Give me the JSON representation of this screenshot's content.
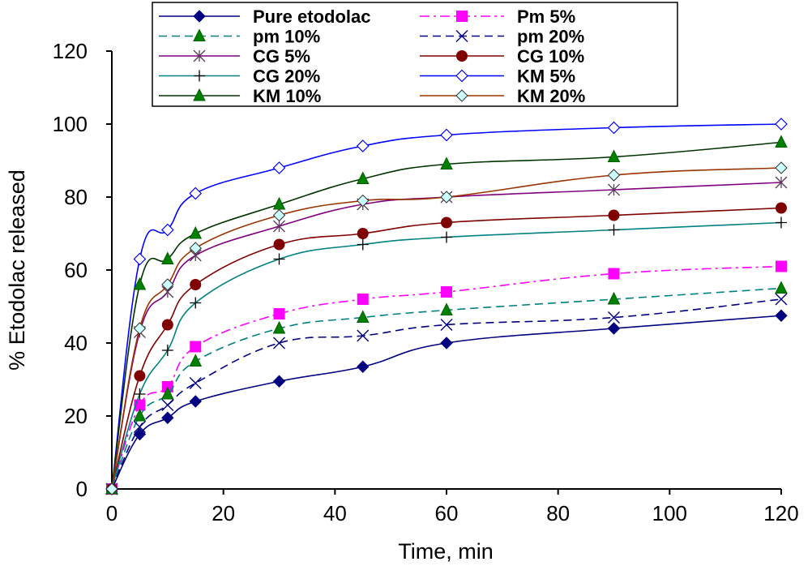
{
  "chart_data": {
    "type": "line",
    "title": "",
    "xlabel": "Time, min",
    "ylabel": "% Etodolac released",
    "xlim": [
      0,
      120
    ],
    "ylim": [
      0,
      120
    ],
    "x_ticks": [
      "0",
      "20",
      "40",
      "60",
      "80",
      "100",
      "120"
    ],
    "y_ticks": [
      "0",
      "20",
      "40",
      "60",
      "80",
      "100",
      "120"
    ],
    "grid": false,
    "legend_position": "top",
    "x": [
      0,
      5,
      10,
      15,
      30,
      45,
      60,
      90,
      120
    ],
    "series": [
      {
        "name": "Pure etodolac",
        "color": "#000080",
        "dash": "solid",
        "marker": "diamond-filled",
        "values": [
          0,
          15,
          19.5,
          24,
          29.5,
          33.5,
          40,
          44,
          47.5
        ]
      },
      {
        "name": "Pm 5%",
        "color": "#ff00ff",
        "dash": "dashdot",
        "marker": "square-filled",
        "values": [
          0,
          23,
          28,
          39,
          48,
          52,
          54,
          59,
          61
        ]
      },
      {
        "name": "pm 10%",
        "color": "#008080",
        "dash": "dashed",
        "marker": "triangle-green",
        "values": [
          0,
          20,
          26,
          35,
          44,
          47,
          49,
          52,
          55
        ]
      },
      {
        "name": "pm 20%",
        "color": "#000080",
        "dash": "dashed",
        "marker": "x",
        "values": [
          0,
          17,
          23,
          29,
          40,
          42,
          45,
          47,
          52
        ]
      },
      {
        "name": "CG 5%",
        "color": "#800080",
        "dash": "solid",
        "marker": "star",
        "values": [
          0,
          43,
          54,
          64,
          72,
          78,
          80,
          82,
          84
        ]
      },
      {
        "name": "CG 10%",
        "color": "#800000",
        "dash": "solid",
        "marker": "circle-filled",
        "values": [
          0,
          31,
          45,
          56,
          67,
          70,
          73,
          75,
          77
        ]
      },
      {
        "name": "CG 20%",
        "color": "#008080",
        "dash": "solid",
        "marker": "plus",
        "values": [
          0,
          26,
          38,
          51,
          63,
          67,
          69,
          71,
          73
        ]
      },
      {
        "name": "KM 5%",
        "color": "#0000ff",
        "dash": "solid",
        "marker": "diamond-open",
        "values": [
          0,
          63,
          71,
          81,
          88,
          94,
          97,
          99,
          100
        ]
      },
      {
        "name": "KM 10%",
        "color": "#003300",
        "dash": "solid",
        "marker": "triangle-green",
        "values": [
          0,
          56,
          63,
          70,
          78,
          85,
          89,
          91,
          95
        ]
      },
      {
        "name": "KM 20%",
        "color": "#993300",
        "dash": "solid",
        "marker": "diamond-light",
        "values": [
          0,
          44,
          56,
          66,
          75,
          79,
          80,
          86,
          88
        ]
      }
    ]
  }
}
